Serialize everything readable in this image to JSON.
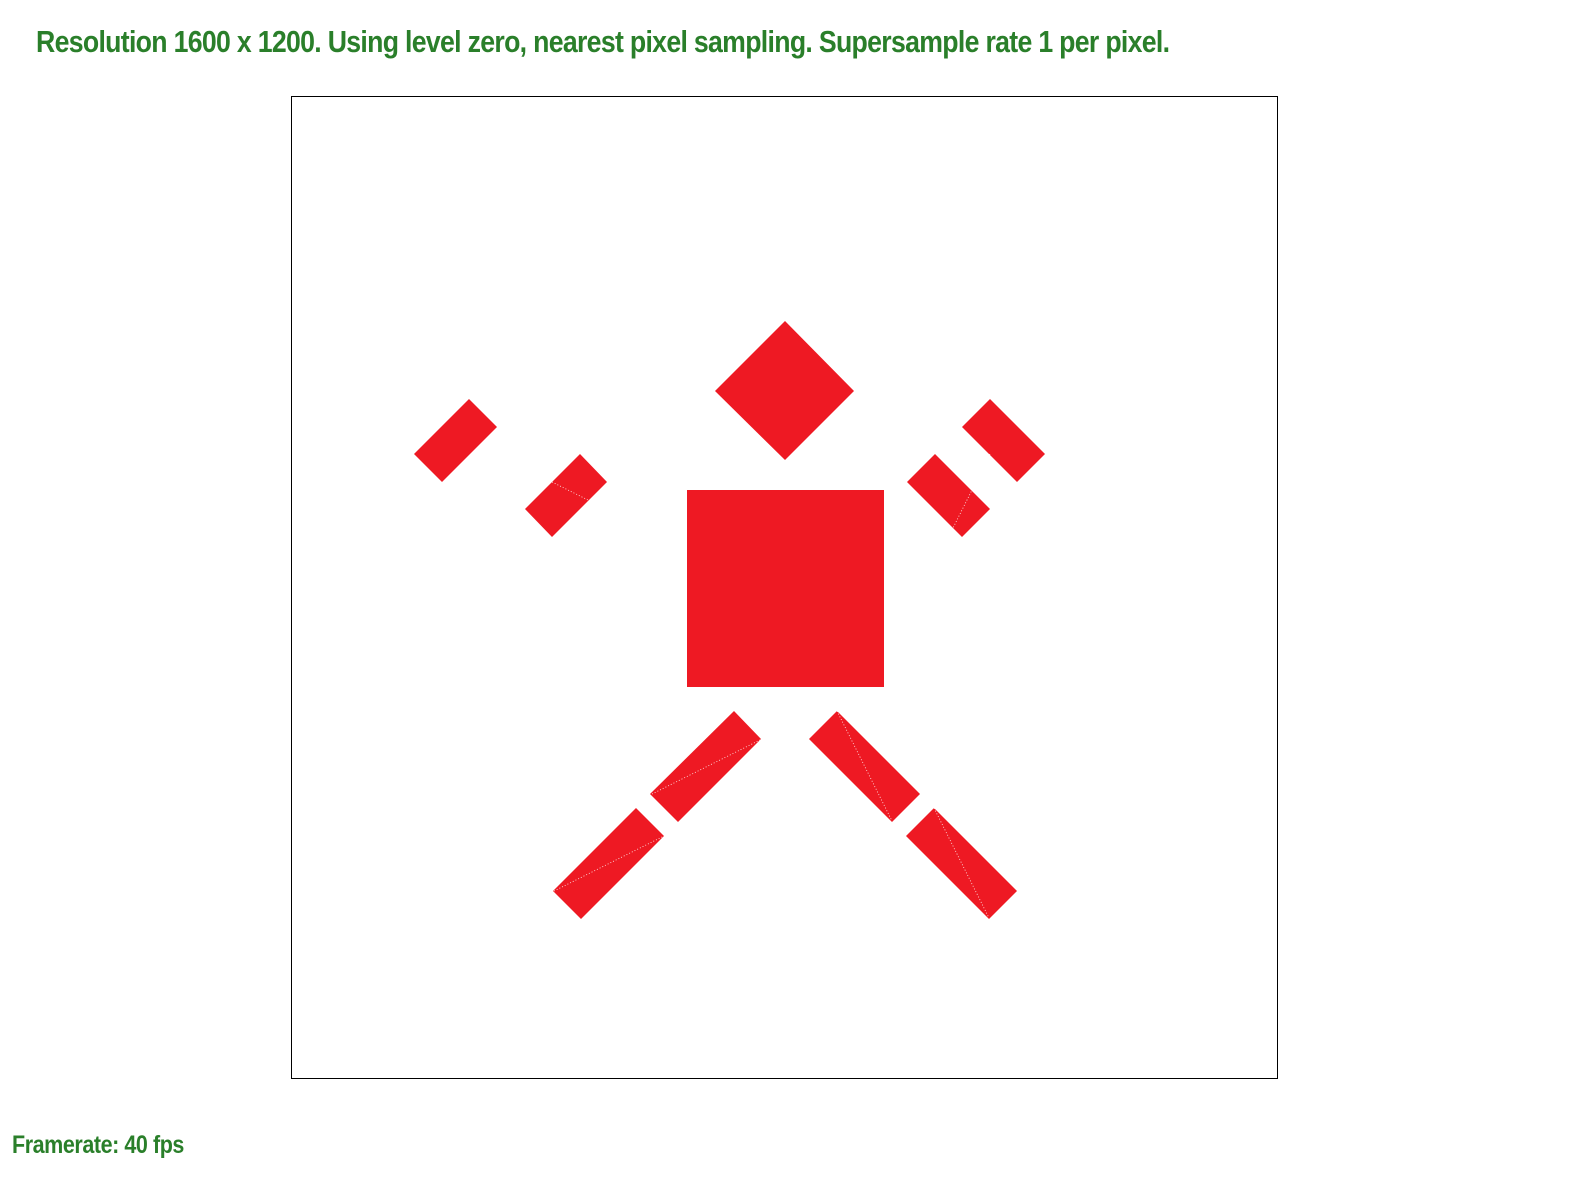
{
  "status": {
    "title": "Resolution 1600 x 1200. Using level zero, nearest pixel sampling. Supersample rate 1 per pixel.",
    "framerate": "Framerate: 40 fps"
  },
  "colors": {
    "status_text": "#2a7f2a",
    "shape_fill": "#ee1923",
    "background": "#ffffff",
    "frame_border": "#000000"
  }
}
